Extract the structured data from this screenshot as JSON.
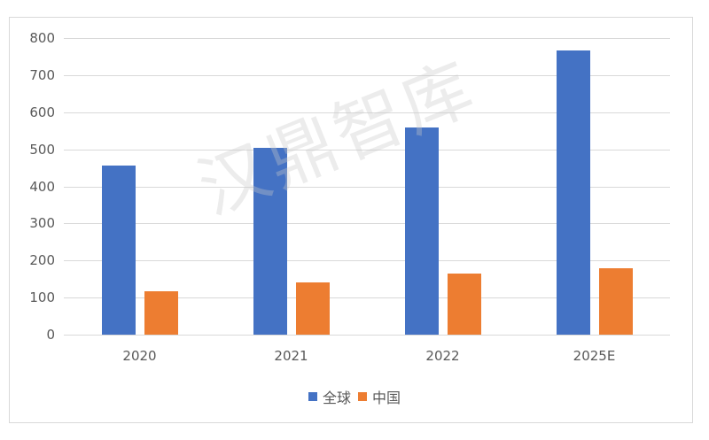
{
  "chart_data": {
    "type": "bar",
    "title": "",
    "xlabel": "",
    "ylabel": "",
    "categories": [
      "2020",
      "2021",
      "2022",
      "2025E"
    ],
    "series": [
      {
        "name": "全球",
        "color": "#4472C4",
        "values": [
          456,
          504,
          558,
          766
        ]
      },
      {
        "name": "中国",
        "color": "#ED7D31",
        "values": [
          117,
          141,
          165,
          179
        ]
      }
    ],
    "ylim": [
      0,
      800
    ],
    "yticks": [
      "0",
      "100",
      "200",
      "300",
      "400",
      "500",
      "600",
      "700",
      "800"
    ],
    "grid": true,
    "legend_position": "bottom"
  },
  "watermark": "汉鼎智库"
}
